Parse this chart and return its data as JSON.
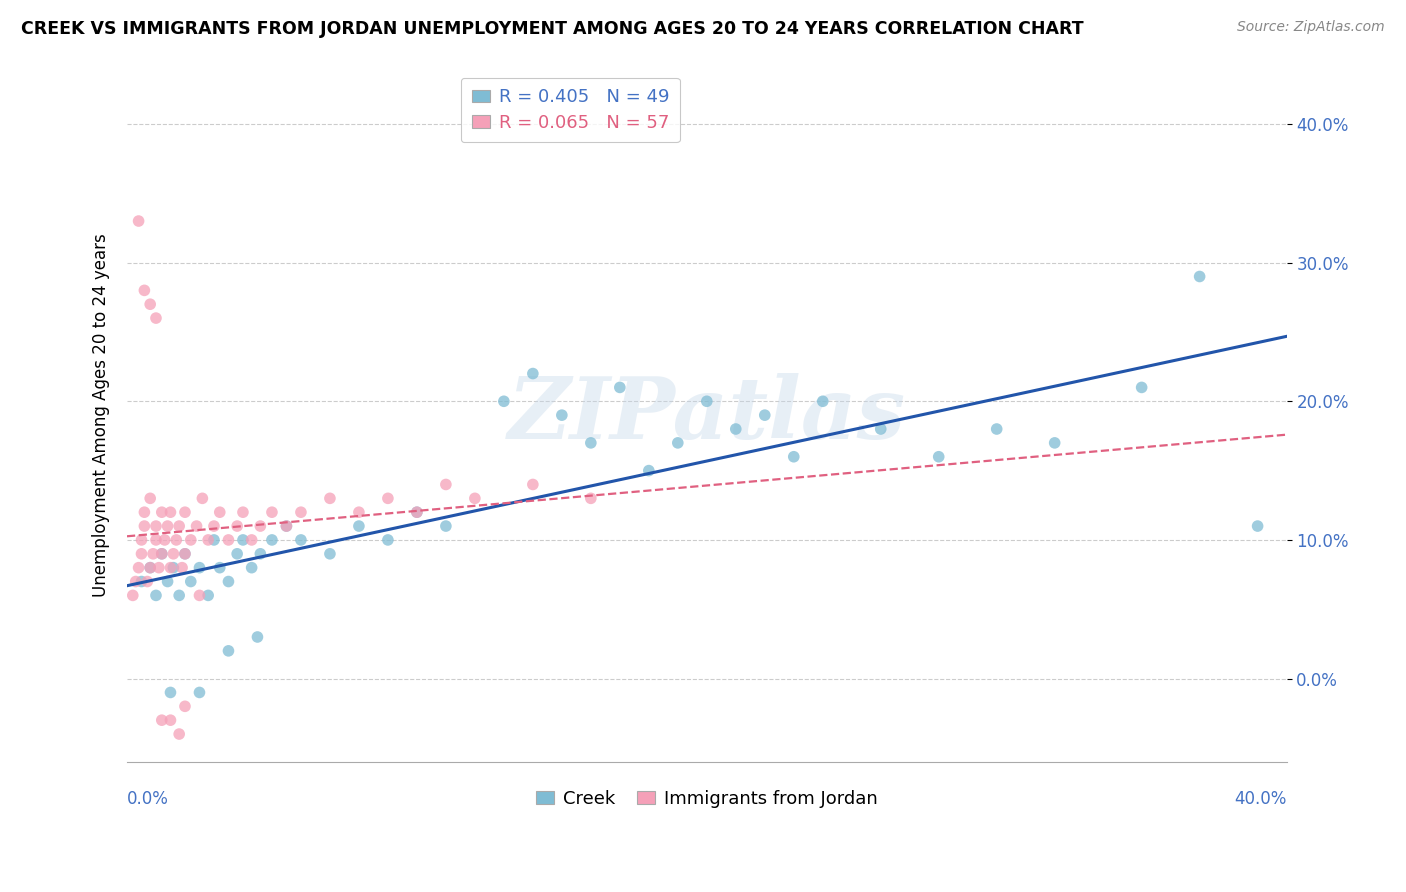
{
  "title": "CREEK VS IMMIGRANTS FROM JORDAN UNEMPLOYMENT AMONG AGES 20 TO 24 YEARS CORRELATION CHART",
  "source": "Source: ZipAtlas.com",
  "ylabel": "Unemployment Among Ages 20 to 24 years",
  "ytick_labels": [
    "0.0%",
    "10.0%",
    "20.0%",
    "30.0%",
    "40.0%"
  ],
  "ytick_values": [
    0.0,
    0.1,
    0.2,
    0.3,
    0.4
  ],
  "xtick_left": "0.0%",
  "xtick_right": "40.0%",
  "xlim": [
    0.0,
    0.4
  ],
  "ylim": [
    -0.06,
    0.44
  ],
  "legend_creek": "R = 0.405   N = 49",
  "legend_jordan": "R = 0.065   N = 57",
  "creek_color": "#7fbcd4",
  "jordan_color": "#f5a0b8",
  "creek_line_color": "#2255aa",
  "jordan_line_color": "#e06080",
  "watermark": "ZIPatlas",
  "creek_x": [
    0.005,
    0.008,
    0.01,
    0.012,
    0.014,
    0.016,
    0.018,
    0.02,
    0.022,
    0.025,
    0.028,
    0.03,
    0.032,
    0.035,
    0.038,
    0.04,
    0.043,
    0.046,
    0.05,
    0.055,
    0.06,
    0.07,
    0.08,
    0.09,
    0.1,
    0.11,
    0.13,
    0.15,
    0.17,
    0.19,
    0.21,
    0.23,
    0.14,
    0.16,
    0.18,
    0.2,
    0.22,
    0.24,
    0.26,
    0.28,
    0.3,
    0.32,
    0.35,
    0.37,
    0.39,
    0.015,
    0.025,
    0.035,
    0.045
  ],
  "creek_y": [
    0.07,
    0.08,
    0.06,
    0.09,
    0.07,
    0.08,
    0.06,
    0.09,
    0.07,
    0.08,
    0.06,
    0.1,
    0.08,
    0.07,
    0.09,
    0.1,
    0.08,
    0.09,
    0.1,
    0.11,
    0.1,
    0.09,
    0.11,
    0.1,
    0.12,
    0.11,
    0.2,
    0.19,
    0.21,
    0.17,
    0.18,
    0.16,
    0.22,
    0.17,
    0.15,
    0.2,
    0.19,
    0.2,
    0.18,
    0.16,
    0.18,
    0.17,
    0.21,
    0.29,
    0.11,
    -0.01,
    -0.01,
    0.02,
    0.03
  ],
  "jordan_x": [
    0.002,
    0.003,
    0.004,
    0.005,
    0.005,
    0.006,
    0.006,
    0.007,
    0.008,
    0.008,
    0.009,
    0.01,
    0.01,
    0.011,
    0.012,
    0.012,
    0.013,
    0.014,
    0.015,
    0.015,
    0.016,
    0.017,
    0.018,
    0.019,
    0.02,
    0.02,
    0.022,
    0.024,
    0.026,
    0.028,
    0.03,
    0.032,
    0.035,
    0.038,
    0.04,
    0.043,
    0.046,
    0.05,
    0.055,
    0.06,
    0.07,
    0.08,
    0.09,
    0.1,
    0.11,
    0.12,
    0.14,
    0.16,
    0.004,
    0.006,
    0.008,
    0.01,
    0.012,
    0.015,
    0.018,
    0.02,
    0.025
  ],
  "jordan_y": [
    0.06,
    0.07,
    0.08,
    0.09,
    0.1,
    0.11,
    0.12,
    0.07,
    0.08,
    0.13,
    0.09,
    0.1,
    0.11,
    0.08,
    0.12,
    0.09,
    0.1,
    0.11,
    0.08,
    0.12,
    0.09,
    0.1,
    0.11,
    0.08,
    0.12,
    0.09,
    0.1,
    0.11,
    0.13,
    0.1,
    0.11,
    0.12,
    0.1,
    0.11,
    0.12,
    0.1,
    0.11,
    0.12,
    0.11,
    0.12,
    0.13,
    0.12,
    0.13,
    0.12,
    0.14,
    0.13,
    0.14,
    0.13,
    0.33,
    0.28,
    0.27,
    0.26,
    -0.03,
    -0.03,
    -0.04,
    -0.02,
    0.06
  ]
}
